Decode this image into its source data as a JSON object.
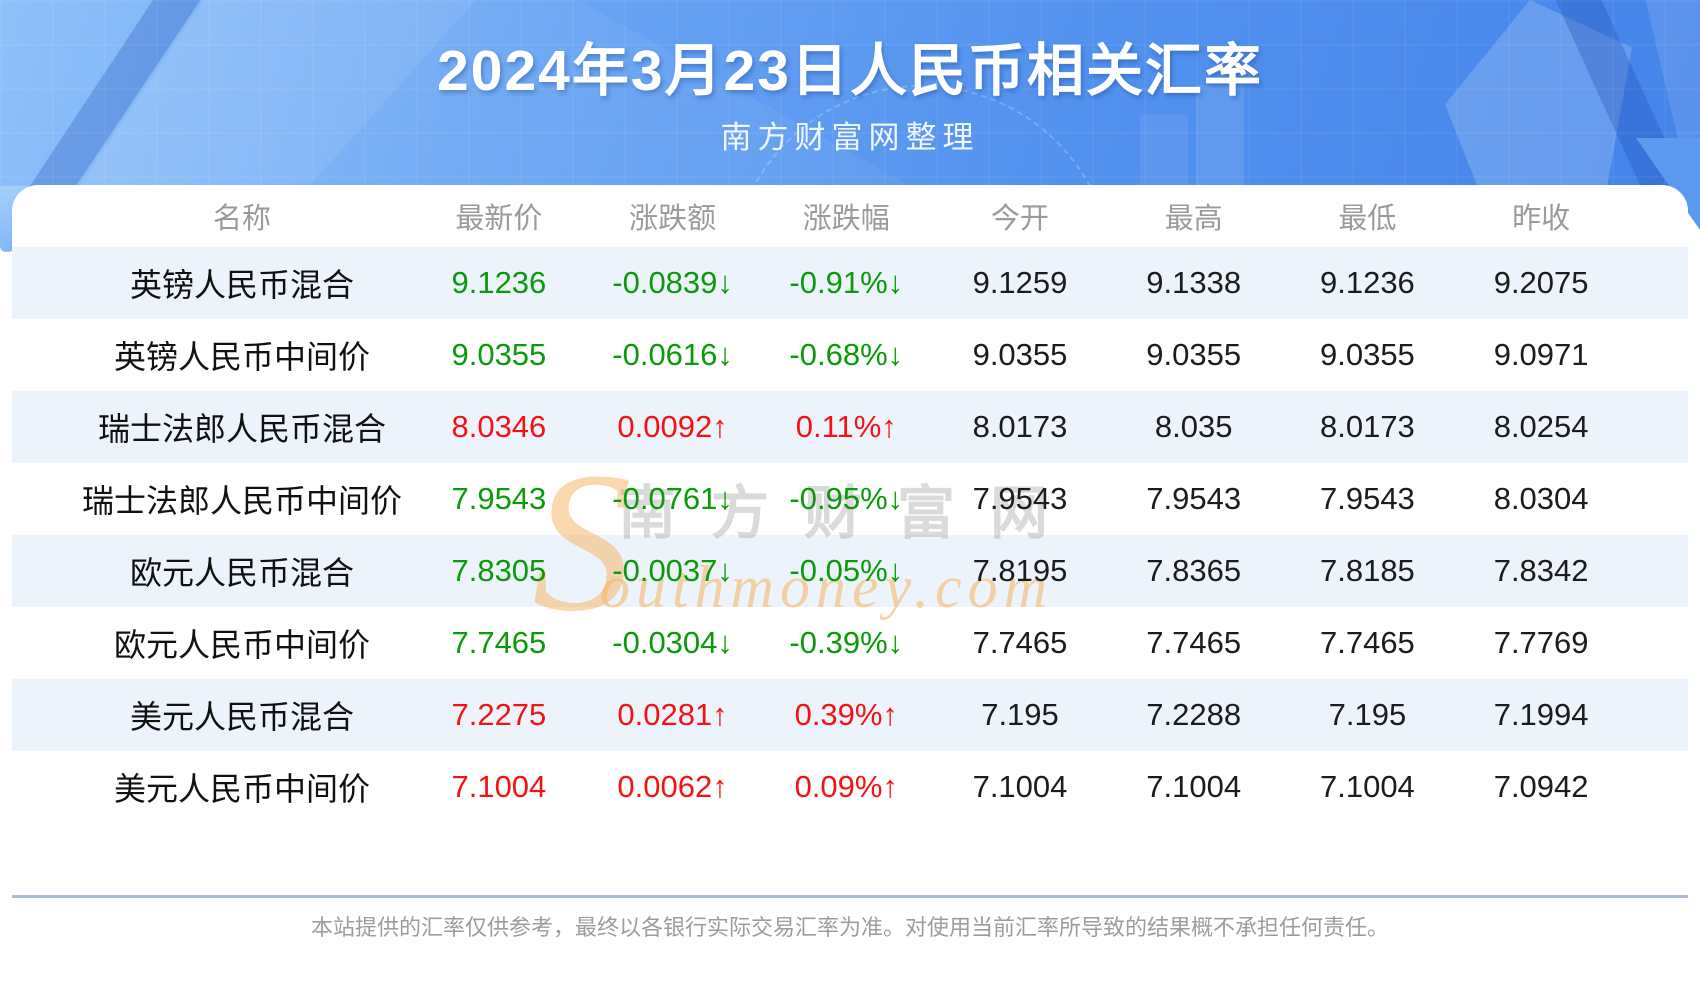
{
  "page": {
    "title": "2024年3月23日人民币相关汇率",
    "subtitle": "南方财富网整理",
    "disclaimer": "本站提供的汇率仅供参考，最终以各银行实际交易汇率为准。对使用当前汇率所导致的结果概不承担任何责任。"
  },
  "watermark": {
    "initial": "S",
    "cn": "南方财富网",
    "en": "outhmoney.com"
  },
  "colors": {
    "up_red": "#f41212",
    "down_green": "#0a9a0a",
    "row_stripe": "#edf3fb",
    "header_text_gray": "#9b9b9b",
    "banner_blue": "#5392ef"
  },
  "table": {
    "columns": [
      "名称",
      "最新价",
      "涨跌额",
      "涨跌幅",
      "今开",
      "最高",
      "最低",
      "昨收"
    ],
    "rows": [
      {
        "name": "英镑人民币混合",
        "last": "9.1236",
        "change": "-0.0839↓",
        "change_pct": "-0.91%↓",
        "open": "9.1259",
        "high": "9.1338",
        "low": "9.1236",
        "prev_close": "9.2075",
        "trend": "down"
      },
      {
        "name": "英镑人民币中间价",
        "last": "9.0355",
        "change": "-0.0616↓",
        "change_pct": "-0.68%↓",
        "open": "9.0355",
        "high": "9.0355",
        "low": "9.0355",
        "prev_close": "9.0971",
        "trend": "down"
      },
      {
        "name": "瑞士法郎人民币混合",
        "last": "8.0346",
        "change": "0.0092↑",
        "change_pct": "0.11%↑",
        "open": "8.0173",
        "high": "8.035",
        "low": "8.0173",
        "prev_close": "8.0254",
        "trend": "up"
      },
      {
        "name": "瑞士法郎人民币中间价",
        "last": "7.9543",
        "change": "-0.0761↓",
        "change_pct": "-0.95%↓",
        "open": "7.9543",
        "high": "7.9543",
        "low": "7.9543",
        "prev_close": "8.0304",
        "trend": "down"
      },
      {
        "name": "欧元人民币混合",
        "last": "7.8305",
        "change": "-0.0037↓",
        "change_pct": "-0.05%↓",
        "open": "7.8195",
        "high": "7.8365",
        "low": "7.8185",
        "prev_close": "7.8342",
        "trend": "down"
      },
      {
        "name": "欧元人民币中间价",
        "last": "7.7465",
        "change": "-0.0304↓",
        "change_pct": "-0.39%↓",
        "open": "7.7465",
        "high": "7.7465",
        "low": "7.7465",
        "prev_close": "7.7769",
        "trend": "down"
      },
      {
        "name": "美元人民币混合",
        "last": "7.2275",
        "change": "0.0281↑",
        "change_pct": "0.39%↑",
        "open": "7.195",
        "high": "7.2288",
        "low": "7.195",
        "prev_close": "7.1994",
        "trend": "up"
      },
      {
        "name": "美元人民币中间价",
        "last": "7.1004",
        "change": "0.0062↑",
        "change_pct": "0.09%↑",
        "open": "7.1004",
        "high": "7.1004",
        "low": "7.1004",
        "prev_close": "7.0942",
        "trend": "up"
      }
    ]
  },
  "chart_data": {
    "type": "table",
    "title": "2024年3月23日人民币相关汇率",
    "subtitle": "南方财富网整理",
    "columns": [
      "名称",
      "最新价",
      "涨跌额",
      "涨跌幅",
      "今开",
      "最高",
      "最低",
      "昨收"
    ],
    "rows": [
      [
        "英镑人民币混合",
        9.1236,
        -0.0839,
        "-0.91%",
        9.1259,
        9.1338,
        9.1236,
        9.2075
      ],
      [
        "英镑人民币中间价",
        9.0355,
        -0.0616,
        "-0.68%",
        9.0355,
        9.0355,
        9.0355,
        9.0971
      ],
      [
        "瑞士法郎人民币混合",
        8.0346,
        0.0092,
        "0.11%",
        8.0173,
        8.035,
        8.0173,
        8.0254
      ],
      [
        "瑞士法郎人民币中间价",
        7.9543,
        -0.0761,
        "-0.95%",
        7.9543,
        7.9543,
        7.9543,
        8.0304
      ],
      [
        "欧元人民币混合",
        7.8305,
        -0.0037,
        "-0.05%",
        7.8195,
        7.8365,
        7.8185,
        7.8342
      ],
      [
        "欧元人民币中间价",
        7.7465,
        -0.0304,
        "-0.39%",
        7.7465,
        7.7465,
        7.7465,
        7.7769
      ],
      [
        "美元人民币混合",
        7.2275,
        0.0281,
        "0.39%",
        7.195,
        7.2288,
        7.195,
        7.1994
      ],
      [
        "美元人民币中间价",
        7.1004,
        0.0062,
        "0.09%",
        7.1004,
        7.1004,
        7.1004,
        7.0942
      ]
    ]
  }
}
